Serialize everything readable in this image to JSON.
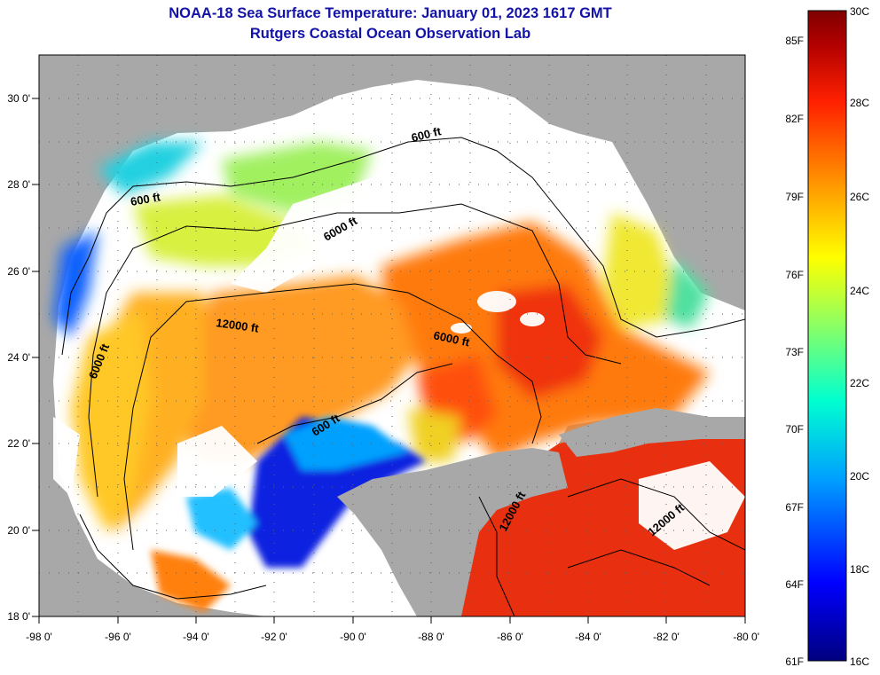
{
  "title": {
    "line1": "NOAA-18 Sea Surface Temperature:  January 01, 2023 1617 GMT",
    "line2": "Rutgers Coastal Ocean Observation Lab"
  },
  "axes": {
    "lon_labels": [
      "-98 0'",
      "-96 0'",
      "-94 0'",
      "-92 0'",
      "-90 0'",
      "-88 0'",
      "-86 0'",
      "-84 0'",
      "-82 0'",
      "-80 0'"
    ],
    "lat_labels": [
      "30 0'",
      "28 0'",
      "26 0'",
      "24 0'",
      "22 0'",
      "20 0'",
      "18 0'"
    ],
    "lon_range": [
      -98,
      -80
    ],
    "lat_range": [
      18,
      31
    ]
  },
  "contours": [
    {
      "label": "600 ft"
    },
    {
      "label": "600 ft"
    },
    {
      "label": "6000 ft"
    },
    {
      "label": "12000 ft"
    },
    {
      "label": "6000 ft"
    },
    {
      "label": "6000 ft"
    },
    {
      "label": "600 ft"
    },
    {
      "label": "12000 ft"
    },
    {
      "label": "12000 ft"
    }
  ],
  "colorbar": {
    "celsius_labels": [
      "30C",
      "28C",
      "26C",
      "24C",
      "22C",
      "20C",
      "18C",
      "16C"
    ],
    "fahrenheit_labels": [
      "85F",
      "82F",
      "79F",
      "76F",
      "73F",
      "70F",
      "67F",
      "64F",
      "61F"
    ],
    "range_c": [
      16,
      30
    ],
    "range_f": [
      61,
      86
    ]
  },
  "colors": {
    "title": "#1313a8",
    "land": "#a8a8a8",
    "cloud": "#ffffff",
    "colormap": [
      "#00007f",
      "#0000ff",
      "#00b0ff",
      "#00ffd0",
      "#a0ff50",
      "#ffff00",
      "#ff9000",
      "#ff2000",
      "#a00000",
      "#7f0000"
    ]
  }
}
